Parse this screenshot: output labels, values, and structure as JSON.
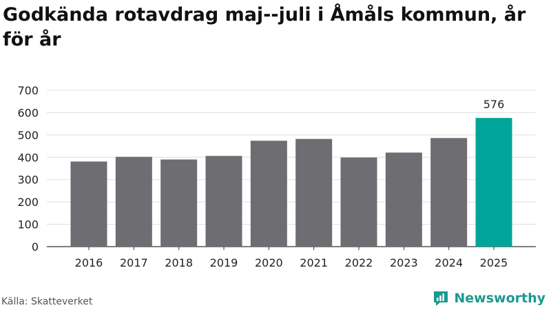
{
  "title": "Godkända rotavdrag maj--juli i Åmåls kommun, år för år",
  "source": "Källa: Skatteverket",
  "brand": "Newsworthy",
  "colors": {
    "bar": "#6e6d72",
    "highlight": "#00a499",
    "grid": "#dddddd",
    "text": "#222222",
    "brand": "#1a9a8e"
  },
  "chart_data": {
    "type": "bar",
    "categories": [
      "2016",
      "2017",
      "2018",
      "2019",
      "2020",
      "2021",
      "2022",
      "2023",
      "2024",
      "2025"
    ],
    "values": [
      381,
      402,
      390,
      406,
      474,
      482,
      399,
      421,
      486,
      576
    ],
    "highlight_index": 9,
    "data_labels": [
      {
        "index": 9,
        "text": "576"
      }
    ],
    "yticks": [
      0,
      100,
      200,
      300,
      400,
      500,
      600,
      700
    ],
    "ylim": [
      0,
      700
    ],
    "grid": true,
    "xlabel": "",
    "ylabel": ""
  }
}
